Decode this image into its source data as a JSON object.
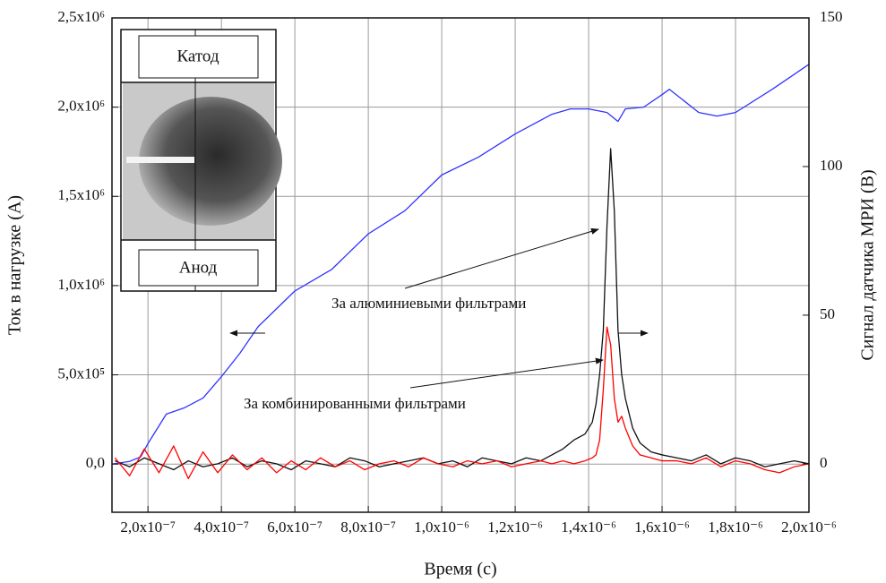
{
  "chart_data": {
    "type": "line",
    "x_label": "Время (с)",
    "y_label": "Ток в нагрузке (А)",
    "y2_label": "Сигнал датчика МРИ (В)",
    "xlim": [
      1.02e-07,
      2e-06
    ],
    "ylim": [
      -270000,
      2500000
    ],
    "y2lim": [
      -16.3,
      150
    ],
    "grid": true,
    "xticks": [
      {
        "value": 2e-07,
        "label": "2,0x10⁻⁷"
      },
      {
        "value": 4e-07,
        "label": "4,0x10⁻⁷"
      },
      {
        "value": 6e-07,
        "label": "6,0x10⁻⁷"
      },
      {
        "value": 8e-07,
        "label": "8,0x10⁻⁷"
      },
      {
        "value": 1e-06,
        "label": "1,0x10⁻⁶"
      },
      {
        "value": 1.2e-06,
        "label": "1,2x10⁻⁶"
      },
      {
        "value": 1.4e-06,
        "label": "1,4x10⁻⁶"
      },
      {
        "value": 1.6e-06,
        "label": "1,6x10⁻⁶"
      },
      {
        "value": 1.8e-06,
        "label": "1,8x10⁻⁶"
      },
      {
        "value": 2e-06,
        "label": "2,0x10⁻⁶"
      }
    ],
    "yticks": [
      {
        "value": 0,
        "label": "0,0"
      },
      {
        "value": 500000,
        "label": "5,0x10⁵"
      },
      {
        "value": 1000000,
        "label": "1,0x10⁶"
      },
      {
        "value": 1500000,
        "label": "1,5x10⁶"
      },
      {
        "value": 2000000,
        "label": "2,0x10⁶"
      },
      {
        "value": 2500000,
        "label": "2,5x10⁶"
      }
    ],
    "y2ticks": [
      0,
      50,
      100,
      150
    ],
    "x": [
      1.1e-07,
      1.5e-07,
      1.9e-07,
      2.3e-07,
      2.7e-07,
      3.1e-07,
      3.5e-07,
      3.9e-07,
      4.3e-07,
      4.7e-07,
      5.1e-07,
      5.5e-07,
      5.9e-07,
      6.3e-07,
      6.7e-07,
      7.1e-07,
      7.5e-07,
      7.9e-07,
      8.3e-07,
      8.7e-07,
      9.1e-07,
      9.5e-07,
      9.9e-07,
      1.03e-06,
      1.07e-06,
      1.11e-06,
      1.15e-06,
      1.19e-06,
      1.23e-06,
      1.27e-06,
      1.3e-06,
      1.33e-06,
      1.36e-06,
      1.39e-06,
      1.41e-06,
      1.42e-06,
      1.43e-06,
      1.44e-06,
      1.45e-06,
      1.46e-06,
      1.47e-06,
      1.48e-06,
      1.49e-06,
      1.5e-06,
      1.52e-06,
      1.54e-06,
      1.57e-06,
      1.6e-06,
      1.64e-06,
      1.68e-06,
      1.72e-06,
      1.76e-06,
      1.8e-06,
      1.84e-06,
      1.88e-06,
      1.92e-06,
      1.96e-06,
      2e-06
    ],
    "series": [
      {
        "color": "#3333ff",
        "axis": "y",
        "x": [
          1.02e-07,
          1.5e-07,
          1.8e-07,
          2e-07,
          2.5e-07,
          3e-07,
          3.5e-07,
          4e-07,
          4.5e-07,
          5e-07,
          6e-07,
          7e-07,
          8e-07,
          9e-07,
          1e-06,
          1.1e-06,
          1.2e-06,
          1.3e-06,
          1.35e-06,
          1.4e-06,
          1.45e-06,
          1.48e-06,
          1.5e-06,
          1.55e-06,
          1.6e-06,
          1.62e-06,
          1.7e-06,
          1.75e-06,
          1.8e-06,
          1.9e-06,
          2e-06
        ],
        "values": [
          0,
          15000,
          40000,
          115000,
          280000,
          316000,
          370000,
          490000,
          620000,
          770000,
          970000,
          1090000,
          1290000,
          1420000,
          1620000,
          1720000,
          1850000,
          1960000,
          1990000,
          1990000,
          1970000,
          1920000,
          1990000,
          2000000,
          2070000,
          2100000,
          1970000,
          1950000,
          1970000,
          2100000,
          2240000
        ]
      },
      {
        "color": "#111111",
        "axis": "y2",
        "values": [
          1,
          -1,
          2,
          0,
          -2,
          1,
          -1,
          0,
          2,
          -1,
          1,
          0,
          -2,
          1,
          0,
          -1,
          2,
          1,
          -1,
          0,
          1,
          2,
          0,
          1,
          -1,
          2,
          1,
          0,
          2,
          1,
          3,
          5,
          8,
          10,
          14,
          20,
          30,
          45,
          80,
          106,
          85,
          45,
          30,
          22,
          12,
          7,
          4,
          3,
          2,
          1,
          3,
          0,
          2,
          1,
          -1,
          0,
          1,
          0
        ]
      },
      {
        "color": "#ff0000",
        "axis": "y2",
        "values": [
          2,
          -4,
          5,
          -3,
          6,
          -5,
          4,
          -3,
          3,
          -2,
          2,
          -3,
          1,
          -2,
          2,
          -1,
          1,
          -2,
          0,
          1,
          -1,
          2,
          0,
          -1,
          1,
          0,
          1,
          -1,
          0,
          1,
          0,
          1,
          0,
          1,
          2,
          3,
          8,
          25,
          46,
          40,
          22,
          14,
          16,
          12,
          6,
          3,
          2,
          1,
          1,
          0,
          2,
          -1,
          1,
          0,
          -2,
          -3,
          -1,
          0
        ]
      }
    ],
    "annotations": [
      "За алюминиевыми фильтрами",
      "За комбинированными фильтрами"
    ]
  },
  "inset": {
    "top_label": "Катод",
    "bottom_label": "Анод"
  }
}
